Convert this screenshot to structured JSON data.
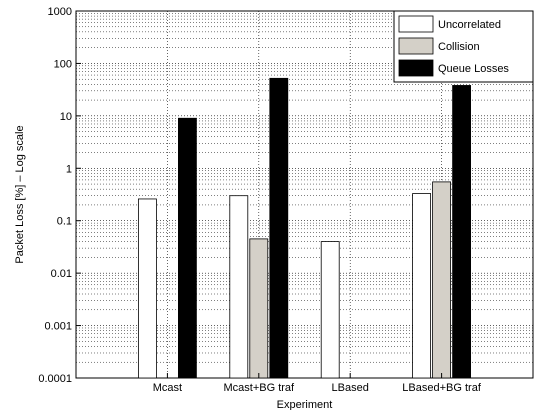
{
  "chart_data": {
    "type": "bar",
    "title": "",
    "xlabel": "Experiment",
    "ylabel": "Packet Loss [%] – Log scale",
    "yscale": "log",
    "ylim": [
      0.0001,
      1000
    ],
    "grid": true,
    "legend_position": "top-right",
    "categories": [
      "Mcast",
      "Mcast+BG traf",
      "LBased",
      "LBased+BG traf"
    ],
    "ytick_labels": [
      "0.0001",
      "0.001",
      "0.01",
      "0.1",
      "1",
      "10",
      "100",
      "1000"
    ],
    "series": [
      {
        "name": "Uncorrelated",
        "color": "#ffffff",
        "values": [
          0.26,
          0.3,
          0.04,
          0.33
        ]
      },
      {
        "name": "Collision",
        "color": "#d4d0c8",
        "values": [
          null,
          0.045,
          null,
          0.55
        ]
      },
      {
        "name": "Queue Losses",
        "color": "#000000",
        "values": [
          9,
          52,
          null,
          38
        ]
      }
    ]
  }
}
